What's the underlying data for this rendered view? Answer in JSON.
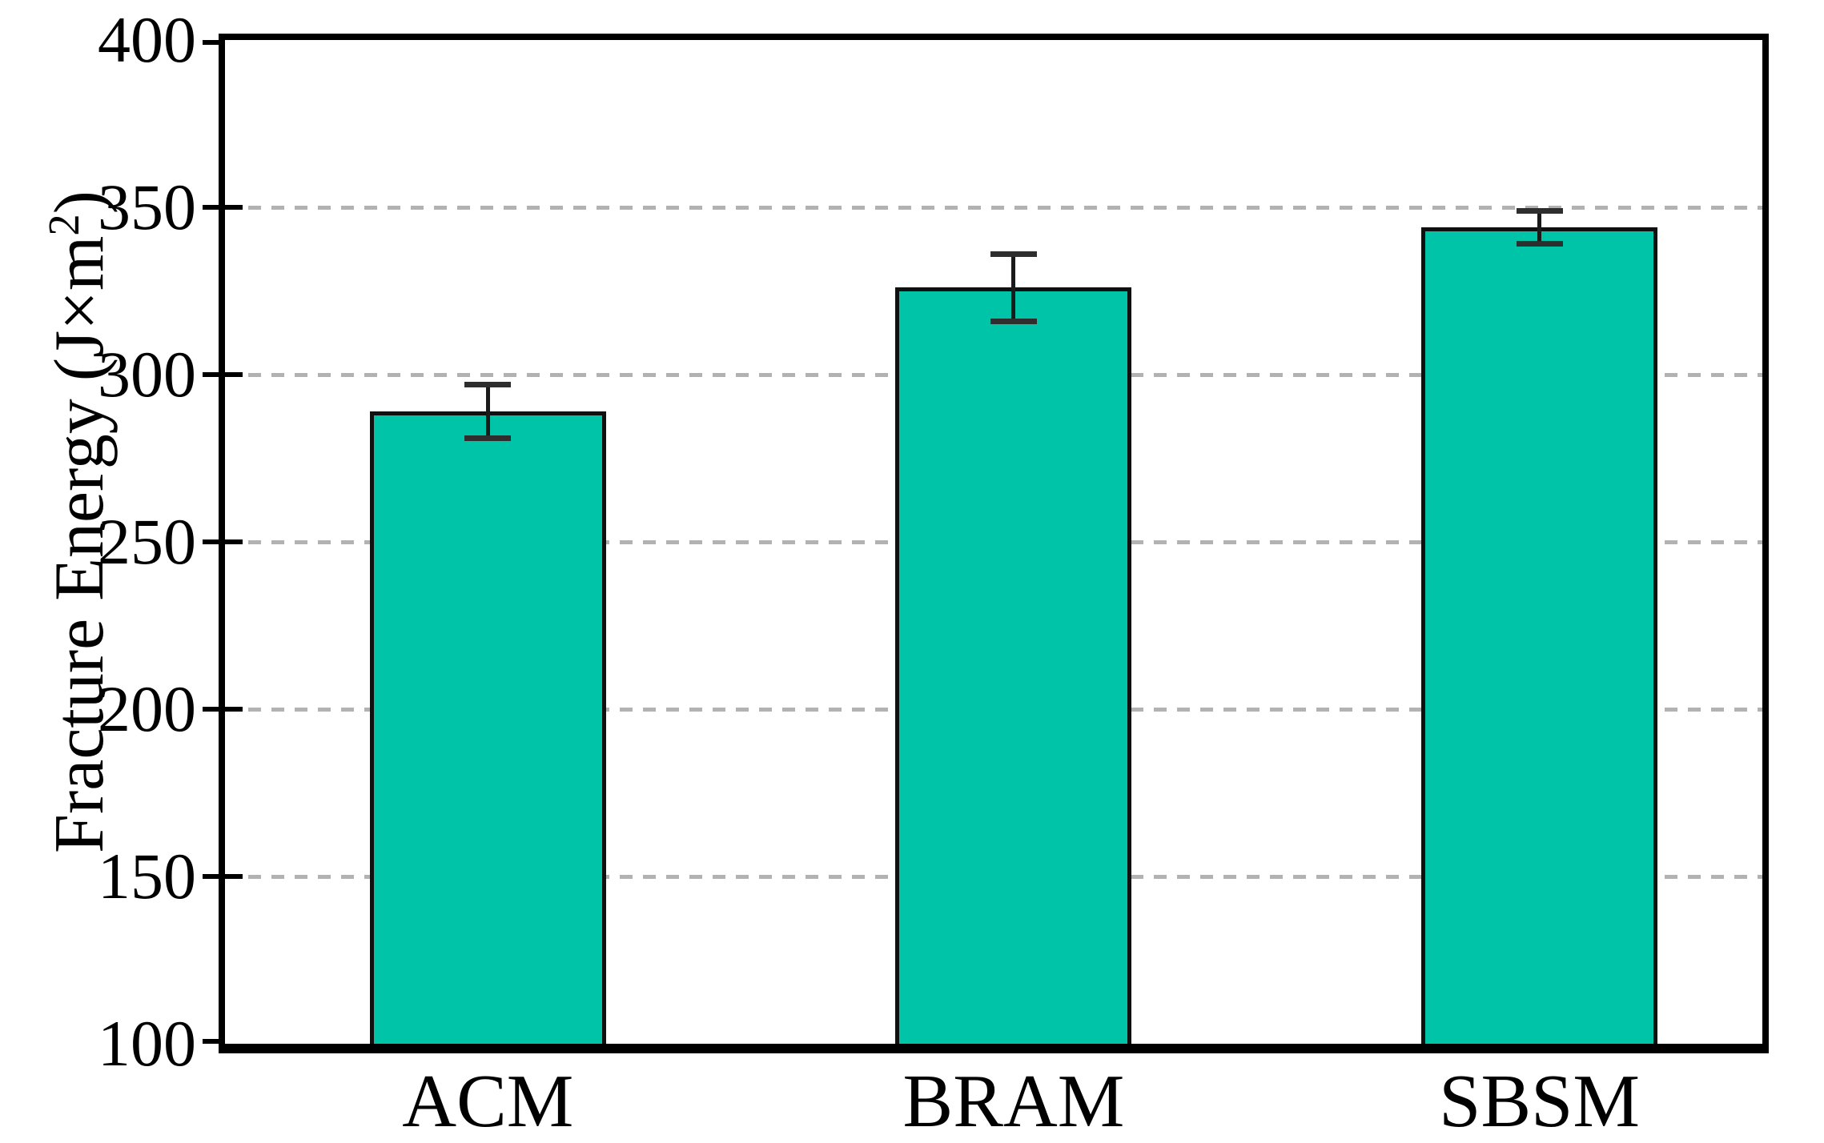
{
  "chart_data": {
    "type": "bar",
    "title": "",
    "categories": [
      "ACM",
      "BRAM",
      "SBSM"
    ],
    "values": [
      289,
      326,
      344
    ],
    "errors": [
      8,
      10,
      5
    ],
    "series_name": "Fracture Energy",
    "xlabel": "",
    "ylabel": "Fracture Energy (J×m2)",
    "ylabel_base": "Fracture Energy (J×m",
    "ylabel_sup": "2",
    "ylabel_close": ")",
    "ylim": [
      100,
      400
    ],
    "ytick_values": [
      100,
      150,
      200,
      250,
      300,
      350,
      400
    ],
    "ytick_labels": [
      "100",
      "150",
      "200",
      "250",
      "300",
      "350",
      "400"
    ],
    "grid_values": [
      150,
      200,
      250,
      300,
      350
    ],
    "grid": "horizontal dashed",
    "legend": null,
    "bar_color": "#00C4A7",
    "bar_edge_color": "#101010",
    "grid_color": "#b2b2b2",
    "axis_color": "#000000",
    "error_bar_color": "#1a1a1a"
  }
}
